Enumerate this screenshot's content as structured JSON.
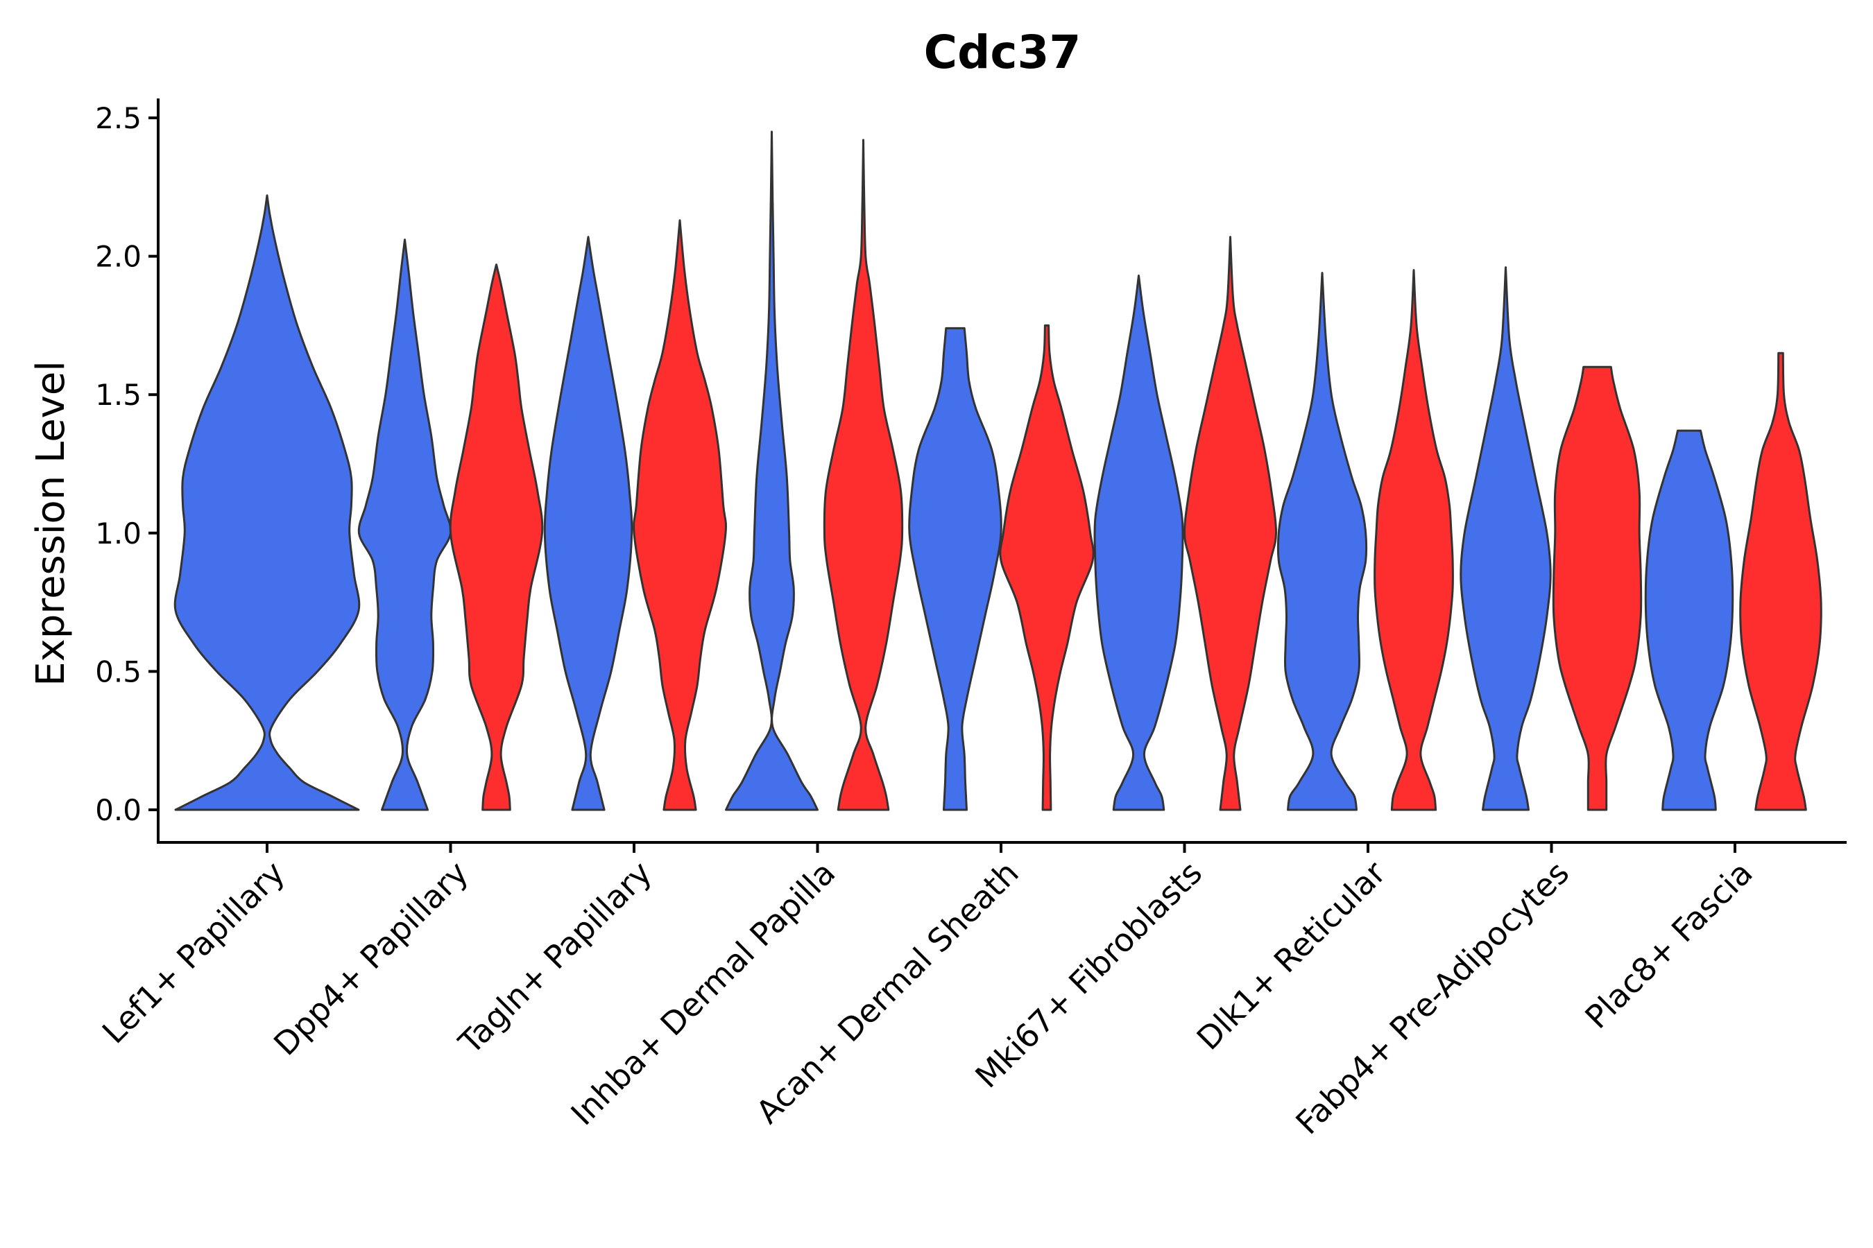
{
  "chart_data": {
    "type": "violin",
    "title": "Cdc37",
    "xlabel": "",
    "ylabel": "Expression Level",
    "ylim": [
      -0.12,
      2.58
    ],
    "yticks": [
      "0.0",
      "0.5",
      "1.0",
      "1.5",
      "2.0",
      "2.5"
    ],
    "grid": false,
    "legend": "none",
    "series_colors": {
      "blue": "#4570EB",
      "red": "#FF2E2E"
    },
    "outline_color": "#333333",
    "categories": [
      "Lef1+ Papillary",
      "Dpp4+ Papillary",
      "Tagln+ Papillary",
      "Inhba+ Dermal Papilla",
      "Acan+ Dermal Sheath",
      "Mki67+ Fibroblasts",
      "Dlk1+ Reticular",
      "Fabp4+ Pre-Adipocytes",
      "Plac8+ Fascia"
    ],
    "violins": [
      {
        "category": "Lef1+ Papillary",
        "group": "blue",
        "max": 2.22,
        "profile": [
          [
            0.0,
            1.0
          ],
          [
            0.05,
            0.7
          ],
          [
            0.1,
            0.4
          ],
          [
            0.15,
            0.25
          ],
          [
            0.2,
            0.12
          ],
          [
            0.25,
            0.04
          ],
          [
            0.3,
            0.05
          ],
          [
            0.4,
            0.25
          ],
          [
            0.5,
            0.55
          ],
          [
            0.6,
            0.8
          ],
          [
            0.72,
            1.0
          ],
          [
            0.85,
            0.95
          ],
          [
            1.0,
            0.9
          ],
          [
            1.1,
            0.92
          ],
          [
            1.2,
            0.92
          ],
          [
            1.3,
            0.85
          ],
          [
            1.45,
            0.7
          ],
          [
            1.6,
            0.5
          ],
          [
            1.75,
            0.33
          ],
          [
            1.9,
            0.2
          ],
          [
            2.05,
            0.09
          ],
          [
            2.15,
            0.03
          ],
          [
            2.22,
            0.0
          ]
        ]
      },
      {
        "category": "Dpp4+ Papillary",
        "group": "blue",
        "max": 2.06,
        "profile": [
          [
            0.0,
            0.5
          ],
          [
            0.1,
            0.28
          ],
          [
            0.2,
            0.05
          ],
          [
            0.3,
            0.15
          ],
          [
            0.4,
            0.45
          ],
          [
            0.5,
            0.6
          ],
          [
            0.6,
            0.62
          ],
          [
            0.7,
            0.58
          ],
          [
            0.8,
            0.62
          ],
          [
            0.9,
            0.7
          ],
          [
            1.0,
            1.0
          ],
          [
            1.1,
            0.85
          ],
          [
            1.2,
            0.7
          ],
          [
            1.35,
            0.58
          ],
          [
            1.5,
            0.42
          ],
          [
            1.65,
            0.3
          ],
          [
            1.8,
            0.18
          ],
          [
            1.95,
            0.08
          ],
          [
            2.06,
            0.0
          ]
        ]
      },
      {
        "category": "Dpp4+ Papillary",
        "group": "red",
        "max": 1.97,
        "profile": [
          [
            0.0,
            0.3
          ],
          [
            0.05,
            0.28
          ],
          [
            0.1,
            0.22
          ],
          [
            0.2,
            0.1
          ],
          [
            0.3,
            0.22
          ],
          [
            0.45,
            0.55
          ],
          [
            0.55,
            0.6
          ],
          [
            0.7,
            0.68
          ],
          [
            0.8,
            0.75
          ],
          [
            1.0,
            1.0
          ],
          [
            1.15,
            0.9
          ],
          [
            1.3,
            0.72
          ],
          [
            1.45,
            0.55
          ],
          [
            1.55,
            0.48
          ],
          [
            1.65,
            0.4
          ],
          [
            1.8,
            0.22
          ],
          [
            1.9,
            0.1
          ],
          [
            1.97,
            0.0
          ]
        ]
      },
      {
        "category": "Tagln+ Papillary",
        "group": "blue",
        "max": 2.07,
        "profile": [
          [
            0.0,
            0.35
          ],
          [
            0.1,
            0.2
          ],
          [
            0.2,
            0.05
          ],
          [
            0.35,
            0.25
          ],
          [
            0.5,
            0.5
          ],
          [
            0.65,
            0.68
          ],
          [
            0.8,
            0.85
          ],
          [
            1.0,
            0.95
          ],
          [
            1.15,
            0.9
          ],
          [
            1.3,
            0.8
          ],
          [
            1.5,
            0.6
          ],
          [
            1.7,
            0.38
          ],
          [
            1.85,
            0.22
          ],
          [
            1.95,
            0.11
          ],
          [
            2.07,
            0.0
          ]
        ]
      },
      {
        "category": "Tagln+ Papillary",
        "group": "red",
        "max": 2.13,
        "profile": [
          [
            0.0,
            0.35
          ],
          [
            0.05,
            0.3
          ],
          [
            0.15,
            0.15
          ],
          [
            0.25,
            0.12
          ],
          [
            0.35,
            0.25
          ],
          [
            0.45,
            0.38
          ],
          [
            0.55,
            0.45
          ],
          [
            0.65,
            0.55
          ],
          [
            0.8,
            0.8
          ],
          [
            1.0,
            1.0
          ],
          [
            1.1,
            0.95
          ],
          [
            1.3,
            0.85
          ],
          [
            1.45,
            0.7
          ],
          [
            1.55,
            0.55
          ],
          [
            1.65,
            0.38
          ],
          [
            1.8,
            0.22
          ],
          [
            1.95,
            0.1
          ],
          [
            2.13,
            0.0
          ]
        ]
      },
      {
        "category": "Inhba+ Dermal Papilla",
        "group": "blue",
        "max": 2.45,
        "profile": [
          [
            0.0,
            1.0
          ],
          [
            0.05,
            0.85
          ],
          [
            0.1,
            0.65
          ],
          [
            0.2,
            0.35
          ],
          [
            0.3,
            0.02
          ],
          [
            0.4,
            0.06
          ],
          [
            0.5,
            0.18
          ],
          [
            0.6,
            0.3
          ],
          [
            0.7,
            0.45
          ],
          [
            0.8,
            0.48
          ],
          [
            0.9,
            0.4
          ],
          [
            1.0,
            0.38
          ],
          [
            1.2,
            0.33
          ],
          [
            1.4,
            0.22
          ],
          [
            1.6,
            0.12
          ],
          [
            1.8,
            0.06
          ],
          [
            2.0,
            0.04
          ],
          [
            2.2,
            0.02
          ],
          [
            2.45,
            0.0
          ]
        ]
      },
      {
        "category": "Inhba+ Dermal Papilla",
        "group": "red",
        "max": 2.42,
        "profile": [
          [
            0.0,
            0.55
          ],
          [
            0.05,
            0.5
          ],
          [
            0.1,
            0.42
          ],
          [
            0.2,
            0.22
          ],
          [
            0.3,
            0.05
          ],
          [
            0.45,
            0.3
          ],
          [
            0.6,
            0.5
          ],
          [
            0.75,
            0.65
          ],
          [
            0.9,
            0.8
          ],
          [
            1.0,
            0.85
          ],
          [
            1.15,
            0.82
          ],
          [
            1.3,
            0.65
          ],
          [
            1.45,
            0.45
          ],
          [
            1.6,
            0.35
          ],
          [
            1.75,
            0.25
          ],
          [
            1.9,
            0.14
          ],
          [
            2.0,
            0.05
          ],
          [
            2.2,
            0.02
          ],
          [
            2.42,
            0.0
          ]
        ]
      },
      {
        "category": "Acan+ Dermal Sheath",
        "group": "blue",
        "max": 1.74,
        "profile": [
          [
            0.0,
            0.25
          ],
          [
            0.1,
            0.22
          ],
          [
            0.2,
            0.2
          ],
          [
            0.3,
            0.15
          ],
          [
            0.4,
            0.25
          ],
          [
            0.55,
            0.45
          ],
          [
            0.7,
            0.65
          ],
          [
            0.85,
            0.85
          ],
          [
            1.0,
            1.0
          ],
          [
            1.15,
            0.95
          ],
          [
            1.3,
            0.8
          ],
          [
            1.45,
            0.45
          ],
          [
            1.55,
            0.3
          ],
          [
            1.65,
            0.25
          ],
          [
            1.74,
            0.2
          ]
        ]
      },
      {
        "category": "Acan+ Dermal Sheath",
        "group": "red",
        "max": 1.75,
        "profile": [
          [
            0.0,
            0.09
          ],
          [
            0.1,
            0.08
          ],
          [
            0.2,
            0.07
          ],
          [
            0.3,
            0.1
          ],
          [
            0.4,
            0.18
          ],
          [
            0.5,
            0.3
          ],
          [
            0.6,
            0.45
          ],
          [
            0.75,
            0.65
          ],
          [
            0.9,
            1.0
          ],
          [
            1.0,
            0.95
          ],
          [
            1.15,
            0.8
          ],
          [
            1.3,
            0.55
          ],
          [
            1.45,
            0.32
          ],
          [
            1.55,
            0.15
          ],
          [
            1.65,
            0.06
          ],
          [
            1.75,
            0.04
          ]
        ]
      },
      {
        "category": "Mki67+ Fibroblasts",
        "group": "blue",
        "max": 1.93,
        "profile": [
          [
            0.0,
            0.55
          ],
          [
            0.05,
            0.5
          ],
          [
            0.1,
            0.35
          ],
          [
            0.2,
            0.12
          ],
          [
            0.3,
            0.35
          ],
          [
            0.45,
            0.6
          ],
          [
            0.6,
            0.8
          ],
          [
            0.75,
            0.9
          ],
          [
            0.9,
            0.95
          ],
          [
            1.05,
            0.95
          ],
          [
            1.2,
            0.8
          ],
          [
            1.35,
            0.6
          ],
          [
            1.5,
            0.4
          ],
          [
            1.65,
            0.25
          ],
          [
            1.8,
            0.1
          ],
          [
            1.93,
            0.0
          ]
        ]
      },
      {
        "category": "Mki67+ Fibroblasts",
        "group": "red",
        "max": 2.07,
        "profile": [
          [
            0.0,
            0.22
          ],
          [
            0.1,
            0.15
          ],
          [
            0.2,
            0.08
          ],
          [
            0.3,
            0.2
          ],
          [
            0.45,
            0.4
          ],
          [
            0.6,
            0.55
          ],
          [
            0.75,
            0.7
          ],
          [
            0.9,
            0.88
          ],
          [
            1.0,
            1.0
          ],
          [
            1.15,
            0.9
          ],
          [
            1.3,
            0.75
          ],
          [
            1.45,
            0.55
          ],
          [
            1.6,
            0.35
          ],
          [
            1.75,
            0.15
          ],
          [
            1.85,
            0.06
          ],
          [
            2.07,
            0.0
          ]
        ]
      },
      {
        "category": "Dlk1+ Reticular",
        "group": "blue",
        "max": 1.94,
        "profile": [
          [
            0.0,
            0.75
          ],
          [
            0.05,
            0.7
          ],
          [
            0.1,
            0.5
          ],
          [
            0.2,
            0.2
          ],
          [
            0.3,
            0.4
          ],
          [
            0.4,
            0.65
          ],
          [
            0.5,
            0.8
          ],
          [
            0.6,
            0.8
          ],
          [
            0.7,
            0.78
          ],
          [
            0.8,
            0.82
          ],
          [
            0.9,
            0.95
          ],
          [
            1.0,
            0.95
          ],
          [
            1.1,
            0.85
          ],
          [
            1.2,
            0.65
          ],
          [
            1.35,
            0.4
          ],
          [
            1.5,
            0.2
          ],
          [
            1.7,
            0.08
          ],
          [
            1.94,
            0.0
          ]
        ]
      },
      {
        "category": "Dlk1+ Reticular",
        "group": "red",
        "max": 1.95,
        "profile": [
          [
            0.0,
            0.48
          ],
          [
            0.05,
            0.45
          ],
          [
            0.1,
            0.35
          ],
          [
            0.2,
            0.15
          ],
          [
            0.3,
            0.3
          ],
          [
            0.4,
            0.45
          ],
          [
            0.5,
            0.6
          ],
          [
            0.6,
            0.72
          ],
          [
            0.7,
            0.8
          ],
          [
            0.8,
            0.85
          ],
          [
            0.9,
            0.85
          ],
          [
            1.0,
            0.82
          ],
          [
            1.1,
            0.78
          ],
          [
            1.2,
            0.68
          ],
          [
            1.3,
            0.5
          ],
          [
            1.45,
            0.32
          ],
          [
            1.6,
            0.18
          ],
          [
            1.75,
            0.06
          ],
          [
            1.95,
            0.0
          ]
        ]
      },
      {
        "category": "Fabp4+ Pre-Adipocytes",
        "group": "blue",
        "max": 1.96,
        "profile": [
          [
            0.0,
            0.5
          ],
          [
            0.05,
            0.45
          ],
          [
            0.15,
            0.3
          ],
          [
            0.2,
            0.25
          ],
          [
            0.3,
            0.35
          ],
          [
            0.4,
            0.55
          ],
          [
            0.55,
            0.75
          ],
          [
            0.7,
            0.9
          ],
          [
            0.85,
            0.98
          ],
          [
            1.0,
            0.9
          ],
          [
            1.2,
            0.65
          ],
          [
            1.4,
            0.4
          ],
          [
            1.55,
            0.22
          ],
          [
            1.7,
            0.08
          ],
          [
            1.96,
            0.0
          ]
        ]
      },
      {
        "category": "Fabp4+ Pre-Adipocytes",
        "group": "red",
        "max": 1.6,
        "profile": [
          [
            0.0,
            0.2
          ],
          [
            0.1,
            0.2
          ],
          [
            0.2,
            0.2
          ],
          [
            0.3,
            0.4
          ],
          [
            0.45,
            0.7
          ],
          [
            0.55,
            0.85
          ],
          [
            0.7,
            0.95
          ],
          [
            0.85,
            0.95
          ],
          [
            1.0,
            0.92
          ],
          [
            1.15,
            0.92
          ],
          [
            1.3,
            0.8
          ],
          [
            1.45,
            0.5
          ],
          [
            1.55,
            0.35
          ],
          [
            1.6,
            0.3
          ]
        ]
      },
      {
        "category": "Plac8+ Fascia",
        "group": "blue",
        "max": 1.37,
        "profile": [
          [
            0.0,
            0.58
          ],
          [
            0.05,
            0.55
          ],
          [
            0.15,
            0.4
          ],
          [
            0.2,
            0.35
          ],
          [
            0.3,
            0.45
          ],
          [
            0.45,
            0.75
          ],
          [
            0.6,
            0.9
          ],
          [
            0.75,
            0.95
          ],
          [
            0.9,
            0.92
          ],
          [
            1.05,
            0.8
          ],
          [
            1.2,
            0.55
          ],
          [
            1.3,
            0.35
          ],
          [
            1.37,
            0.25
          ]
        ]
      },
      {
        "category": "Plac8+ Fascia",
        "group": "red",
        "max": 1.65,
        "profile": [
          [
            0.0,
            0.55
          ],
          [
            0.05,
            0.5
          ],
          [
            0.15,
            0.35
          ],
          [
            0.2,
            0.32
          ],
          [
            0.3,
            0.45
          ],
          [
            0.45,
            0.7
          ],
          [
            0.6,
            0.85
          ],
          [
            0.75,
            0.88
          ],
          [
            0.9,
            0.8
          ],
          [
            1.05,
            0.65
          ],
          [
            1.2,
            0.52
          ],
          [
            1.3,
            0.4
          ],
          [
            1.4,
            0.18
          ],
          [
            1.5,
            0.07
          ],
          [
            1.65,
            0.05
          ]
        ]
      }
    ]
  }
}
